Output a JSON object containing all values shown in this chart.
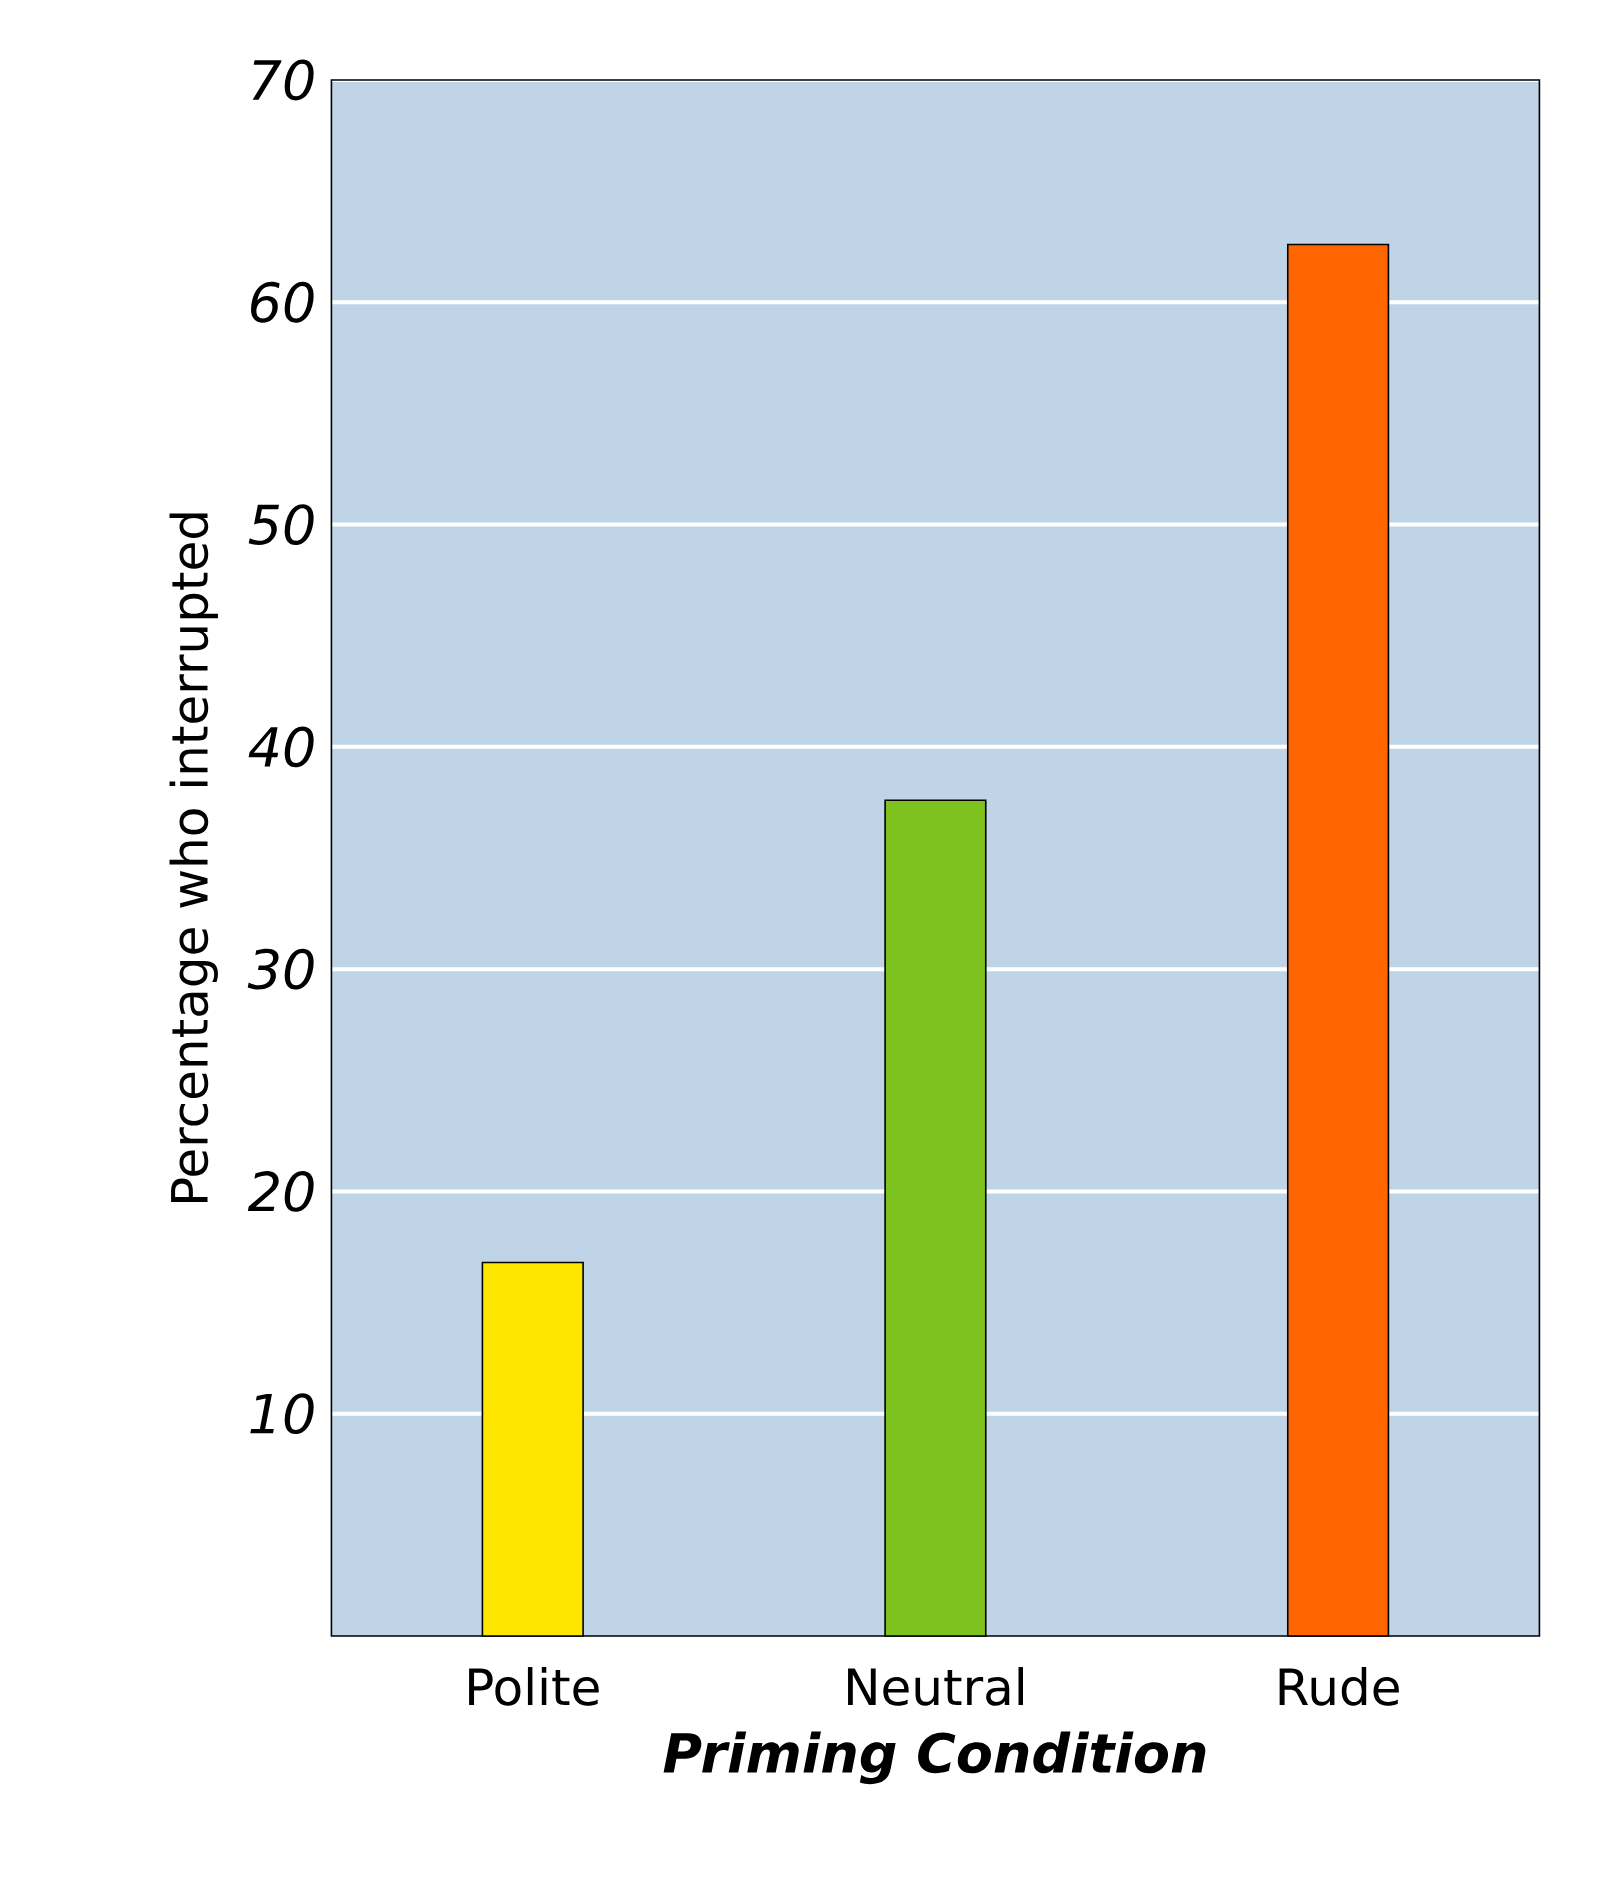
{
  "chart_data": {
    "type": "bar",
    "xlabel": "Priming Condition",
    "ylabel": "Percentage who interrupted",
    "categories": [
      "Polite",
      "Neutral",
      "Rude"
    ],
    "values": [
      16.8,
      37.6,
      62.6
    ],
    "colors": [
      "#ffe600",
      "#7dc21e",
      "#ff6600"
    ],
    "ylim": [
      0,
      70
    ],
    "yticks": [
      10,
      20,
      30,
      40,
      50,
      60,
      70
    ],
    "grid": "y"
  }
}
